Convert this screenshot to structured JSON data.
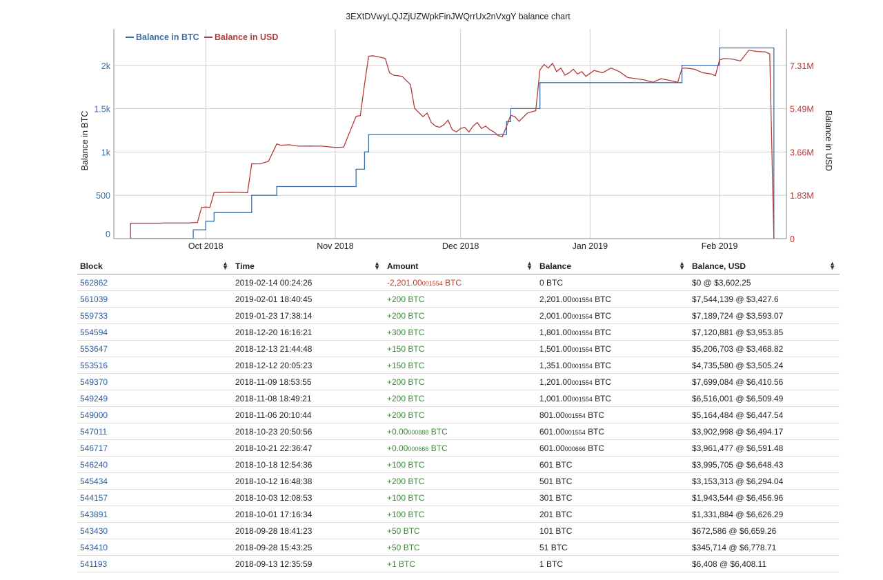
{
  "chart_data": {
    "type": "line",
    "title": "3EXtDVwyLQJZjUZWpkFinJWQrrUx2nVxgY balance chart",
    "ylabel_left": "Balance in BTC",
    "ylabel_right": "Balance in USD",
    "x_ticks": [
      "Oct 2018",
      "Nov 2018",
      "Dec 2018",
      "Jan 2019",
      "Feb 2019"
    ],
    "y_left_ticks": [
      "0",
      "500",
      "1k",
      "1.5k",
      "2k"
    ],
    "y_right_ticks": [
      "0",
      "1.83M",
      "3.66M",
      "5.49M",
      "7.31M"
    ],
    "ylim_left": [
      0,
      2420
    ],
    "ylim_right": [
      0,
      8850000
    ],
    "legend_position": "top-left",
    "series": [
      {
        "name": "Balance in BTC",
        "color": "#3a6ea5",
        "step": true,
        "points": [
          [
            "2018-09-13",
            0
          ],
          [
            "2018-09-13",
            1
          ],
          [
            "2018-09-28",
            51
          ],
          [
            "2018-09-28",
            101
          ],
          [
            "2018-10-01",
            201
          ],
          [
            "2018-10-03",
            301
          ],
          [
            "2018-10-12",
            501
          ],
          [
            "2018-10-18",
            601
          ],
          [
            "2018-10-21",
            601
          ],
          [
            "2018-10-23",
            601
          ],
          [
            "2018-11-06",
            801
          ],
          [
            "2018-11-08",
            1001
          ],
          [
            "2018-11-09",
            1201
          ],
          [
            "2018-12-12",
            1351
          ],
          [
            "2018-12-13",
            1501
          ],
          [
            "2018-12-20",
            1801
          ],
          [
            "2019-01-23",
            2001
          ],
          [
            "2019-02-01",
            2201
          ],
          [
            "2019-02-14",
            0
          ]
        ]
      },
      {
        "name": "Balance in USD",
        "color": "#b23a3a",
        "step": false,
        "points": [
          [
            "2018-09-13",
            0
          ],
          [
            "2018-09-13",
            6408
          ],
          [
            "2018-09-13",
            650000
          ],
          [
            "2018-09-20",
            650000
          ],
          [
            "2018-09-21",
            660000
          ],
          [
            "2018-09-27",
            660000
          ],
          [
            "2018-09-28",
            672586
          ],
          [
            "2018-09-29",
            680000
          ],
          [
            "2018-09-30",
            1320000
          ],
          [
            "2018-10-01",
            1331884
          ],
          [
            "2018-10-02",
            1320000
          ],
          [
            "2018-10-03",
            1943544
          ],
          [
            "2018-10-05",
            1950000
          ],
          [
            "2018-10-07",
            1960000
          ],
          [
            "2018-10-09",
            1950000
          ],
          [
            "2018-10-11",
            1940000
          ],
          [
            "2018-10-12",
            3153313
          ],
          [
            "2018-10-14",
            3160000
          ],
          [
            "2018-10-16",
            3260000
          ],
          [
            "2018-10-18",
            3995705
          ],
          [
            "2018-10-19",
            3940000
          ],
          [
            "2018-10-21",
            3961477
          ],
          [
            "2018-10-23",
            3902998
          ],
          [
            "2018-10-26",
            3910000
          ],
          [
            "2018-10-29",
            3900000
          ],
          [
            "2018-11-01",
            3850000
          ],
          [
            "2018-11-03",
            3860000
          ],
          [
            "2018-11-06",
            5164484
          ],
          [
            "2018-11-07",
            5190000
          ],
          [
            "2018-11-08",
            6516001
          ],
          [
            "2018-11-09",
            7699084
          ],
          [
            "2018-11-10",
            7720000
          ],
          [
            "2018-11-12",
            7650000
          ],
          [
            "2018-11-13",
            7600000
          ],
          [
            "2018-11-14",
            7000000
          ],
          [
            "2018-11-15",
            6900000
          ],
          [
            "2018-11-17",
            6850000
          ],
          [
            "2018-11-19",
            6500000
          ],
          [
            "2018-11-20",
            5500000
          ],
          [
            "2018-11-22",
            5150000
          ],
          [
            "2018-11-23",
            5300000
          ],
          [
            "2018-11-24",
            4900000
          ],
          [
            "2018-11-25",
            4750000
          ],
          [
            "2018-11-26",
            4700000
          ],
          [
            "2018-11-27",
            4800000
          ],
          [
            "2018-11-28",
            5000000
          ],
          [
            "2018-11-29",
            4600000
          ],
          [
            "2018-11-30",
            4500000
          ],
          [
            "2018-12-01",
            4650000
          ],
          [
            "2018-12-02",
            4700000
          ],
          [
            "2018-12-03",
            4500000
          ],
          [
            "2018-12-04",
            4750000
          ],
          [
            "2018-12-05",
            4900000
          ],
          [
            "2018-12-06",
            4650000
          ],
          [
            "2018-12-07",
            4750000
          ],
          [
            "2018-12-08",
            4600000
          ],
          [
            "2018-12-09",
            4500000
          ],
          [
            "2018-12-10",
            4350000
          ],
          [
            "2018-12-11",
            4300000
          ],
          [
            "2018-12-12",
            4735580
          ],
          [
            "2018-12-13",
            5206703
          ],
          [
            "2018-12-14",
            5150000
          ],
          [
            "2018-12-15",
            4950000
          ],
          [
            "2018-12-17",
            5300000
          ],
          [
            "2018-12-19",
            5400000
          ],
          [
            "2018-12-20",
            7120881
          ],
          [
            "2018-12-21",
            7350000
          ],
          [
            "2018-12-22",
            7200000
          ],
          [
            "2018-12-23",
            7400000
          ],
          [
            "2018-12-24",
            7050000
          ],
          [
            "2018-12-25",
            7200000
          ],
          [
            "2018-12-26",
            6900000
          ],
          [
            "2018-12-27",
            7000000
          ],
          [
            "2018-12-28",
            7150000
          ],
          [
            "2018-12-29",
            6950000
          ],
          [
            "2018-12-30",
            7050000
          ],
          [
            "2018-12-31",
            6850000
          ],
          [
            "2019-01-02",
            7100000
          ],
          [
            "2019-01-04",
            7000000
          ],
          [
            "2019-01-06",
            7200000
          ],
          [
            "2019-01-08",
            7050000
          ],
          [
            "2019-01-10",
            6800000
          ],
          [
            "2019-01-12",
            6750000
          ],
          [
            "2019-01-14",
            6700000
          ],
          [
            "2019-01-16",
            6600000
          ],
          [
            "2019-01-18",
            6750000
          ],
          [
            "2019-01-20",
            6680000
          ],
          [
            "2019-01-22",
            6600000
          ],
          [
            "2019-01-23",
            7189724
          ],
          [
            "2019-01-24",
            7200000
          ],
          [
            "2019-01-26",
            7150000
          ],
          [
            "2019-01-28",
            7000000
          ],
          [
            "2019-01-30",
            6950000
          ],
          [
            "2019-01-31",
            6880000
          ],
          [
            "2019-02-01",
            7544139
          ],
          [
            "2019-02-02",
            7600000
          ],
          [
            "2019-02-04",
            7580000
          ],
          [
            "2019-02-06",
            7500000
          ],
          [
            "2019-02-08",
            7950000
          ],
          [
            "2019-02-10",
            7900000
          ],
          [
            "2019-02-12",
            7880000
          ],
          [
            "2019-02-13",
            7800000
          ],
          [
            "2019-02-14",
            0
          ]
        ]
      }
    ]
  },
  "table": {
    "headers": [
      "Block",
      "Time",
      "Amount",
      "Balance",
      "Balance, USD"
    ],
    "sort_icon": "sort-updown-icon",
    "rows": [
      {
        "block": "562862",
        "time": "2019-02-14 00:24:26",
        "amount_main": "-2,201.00",
        "amount_sub": "001554",
        "amount_unit": " BTC",
        "amount_sign": "neg",
        "bal_main": "0",
        "bal_sub": "",
        "bal_unit": " BTC",
        "usd": "$0 @ $3,602.25"
      },
      {
        "block": "561039",
        "time": "2019-02-01 18:40:45",
        "amount_main": "+200",
        "amount_sub": "",
        "amount_unit": " BTC",
        "amount_sign": "pos",
        "bal_main": "2,201.00",
        "bal_sub": "001554",
        "bal_unit": " BTC",
        "usd": "$7,544,139 @ $3,427.6"
      },
      {
        "block": "559733",
        "time": "2019-01-23 17:38:14",
        "amount_main": "+200",
        "amount_sub": "",
        "amount_unit": " BTC",
        "amount_sign": "pos",
        "bal_main": "2,001.00",
        "bal_sub": "001554",
        "bal_unit": " BTC",
        "usd": "$7,189,724 @ $3,593.07"
      },
      {
        "block": "554594",
        "time": "2018-12-20 16:16:21",
        "amount_main": "+300",
        "amount_sub": "",
        "amount_unit": " BTC",
        "amount_sign": "pos",
        "bal_main": "1,801.00",
        "bal_sub": "001554",
        "bal_unit": " BTC",
        "usd": "$7,120,881 @ $3,953.85"
      },
      {
        "block": "553647",
        "time": "2018-12-13 21:44:48",
        "amount_main": "+150",
        "amount_sub": "",
        "amount_unit": " BTC",
        "amount_sign": "pos",
        "bal_main": "1,501.00",
        "bal_sub": "001554",
        "bal_unit": " BTC",
        "usd": "$5,206,703 @ $3,468.82"
      },
      {
        "block": "553516",
        "time": "2018-12-12 20:05:23",
        "amount_main": "+150",
        "amount_sub": "",
        "amount_unit": " BTC",
        "amount_sign": "pos",
        "bal_main": "1,351.00",
        "bal_sub": "001554",
        "bal_unit": " BTC",
        "usd": "$4,735,580 @ $3,505.24"
      },
      {
        "block": "549370",
        "time": "2018-11-09 18:53:55",
        "amount_main": "+200",
        "amount_sub": "",
        "amount_unit": " BTC",
        "amount_sign": "pos",
        "bal_main": "1,201.00",
        "bal_sub": "001554",
        "bal_unit": " BTC",
        "usd": "$7,699,084 @ $6,410.56"
      },
      {
        "block": "549249",
        "time": "2018-11-08 18:49:21",
        "amount_main": "+200",
        "amount_sub": "",
        "amount_unit": " BTC",
        "amount_sign": "pos",
        "bal_main": "1,001.00",
        "bal_sub": "001554",
        "bal_unit": " BTC",
        "usd": "$6,516,001 @ $6,509.49"
      },
      {
        "block": "549000",
        "time": "2018-11-06 20:10:44",
        "amount_main": "+200",
        "amount_sub": "",
        "amount_unit": " BTC",
        "amount_sign": "pos",
        "bal_main": "801.00",
        "bal_sub": "001554",
        "bal_unit": " BTC",
        "usd": "$5,164,484 @ $6,447.54"
      },
      {
        "block": "547011",
        "time": "2018-10-23 20:50:56",
        "amount_main": "+0.00",
        "amount_sub": "000888",
        "amount_unit": " BTC",
        "amount_sign": "pos",
        "bal_main": "601.00",
        "bal_sub": "001554",
        "bal_unit": " BTC",
        "usd": "$3,902,998 @ $6,494.17"
      },
      {
        "block": "546717",
        "time": "2018-10-21 22:36:47",
        "amount_main": "+0.00",
        "amount_sub": "000666",
        "amount_unit": " BTC",
        "amount_sign": "pos",
        "bal_main": "601.00",
        "bal_sub": "000666",
        "bal_unit": " BTC",
        "usd": "$3,961,477 @ $6,591.48"
      },
      {
        "block": "546240",
        "time": "2018-10-18 12:54:36",
        "amount_main": "+100",
        "amount_sub": "",
        "amount_unit": " BTC",
        "amount_sign": "pos",
        "bal_main": "601",
        "bal_sub": "",
        "bal_unit": " BTC",
        "usd": "$3,995,705 @ $6,648.43"
      },
      {
        "block": "545434",
        "time": "2018-10-12 16:48:38",
        "amount_main": "+200",
        "amount_sub": "",
        "amount_unit": " BTC",
        "amount_sign": "pos",
        "bal_main": "501",
        "bal_sub": "",
        "bal_unit": " BTC",
        "usd": "$3,153,313 @ $6,294.04"
      },
      {
        "block": "544157",
        "time": "2018-10-03 12:08:53",
        "amount_main": "+100",
        "amount_sub": "",
        "amount_unit": " BTC",
        "amount_sign": "pos",
        "bal_main": "301",
        "bal_sub": "",
        "bal_unit": " BTC",
        "usd": "$1,943,544 @ $6,456.96"
      },
      {
        "block": "543891",
        "time": "2018-10-01 17:16:34",
        "amount_main": "+100",
        "amount_sub": "",
        "amount_unit": " BTC",
        "amount_sign": "pos",
        "bal_main": "201",
        "bal_sub": "",
        "bal_unit": " BTC",
        "usd": "$1,331,884 @ $6,626.29"
      },
      {
        "block": "543430",
        "time": "2018-09-28 18:41:23",
        "amount_main": "+50",
        "amount_sub": "",
        "amount_unit": " BTC",
        "amount_sign": "pos",
        "bal_main": "101",
        "bal_sub": "",
        "bal_unit": " BTC",
        "usd": "$672,586 @ $6,659.26"
      },
      {
        "block": "543410",
        "time": "2018-09-28 15:43:25",
        "amount_main": "+50",
        "amount_sub": "",
        "amount_unit": " BTC",
        "amount_sign": "pos",
        "bal_main": "51",
        "bal_sub": "",
        "bal_unit": " BTC",
        "usd": "$345,714 @ $6,778.71"
      },
      {
        "block": "541193",
        "time": "2018-09-13 12:35:59",
        "amount_main": "+1",
        "amount_sub": "",
        "amount_unit": " BTC",
        "amount_sign": "pos",
        "bal_main": "1",
        "bal_sub": "",
        "bal_unit": " BTC",
        "usd": "$6,408 @ $6,408.11"
      }
    ]
  }
}
